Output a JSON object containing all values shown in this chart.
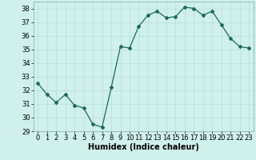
{
  "x": [
    0,
    1,
    2,
    3,
    4,
    5,
    6,
    7,
    8,
    9,
    10,
    11,
    12,
    13,
    14,
    15,
    16,
    17,
    18,
    19,
    20,
    21,
    22,
    23
  ],
  "y": [
    32.5,
    31.7,
    31.1,
    31.7,
    30.9,
    30.7,
    29.5,
    29.3,
    32.2,
    35.2,
    35.1,
    36.7,
    37.5,
    37.8,
    37.3,
    37.4,
    38.1,
    38.0,
    37.5,
    37.8,
    36.8,
    35.8,
    35.2,
    35.1
  ],
  "xlabel": "Humidex (Indice chaleur)",
  "ylim": [
    29,
    38.5
  ],
  "xlim": [
    -0.5,
    23.5
  ],
  "yticks": [
    29,
    30,
    31,
    32,
    33,
    34,
    35,
    36,
    37,
    38
  ],
  "xticks": [
    0,
    1,
    2,
    3,
    4,
    5,
    6,
    7,
    8,
    9,
    10,
    11,
    12,
    13,
    14,
    15,
    16,
    17,
    18,
    19,
    20,
    21,
    22,
    23
  ],
  "line_color": "#1a6b5a",
  "marker": "D",
  "marker_size": 2.0,
  "bg_color": "#cff0eb",
  "grid_color": "#b8ddd8",
  "xlabel_fontsize": 7,
  "tick_fontsize": 6,
  "line_width": 0.9
}
